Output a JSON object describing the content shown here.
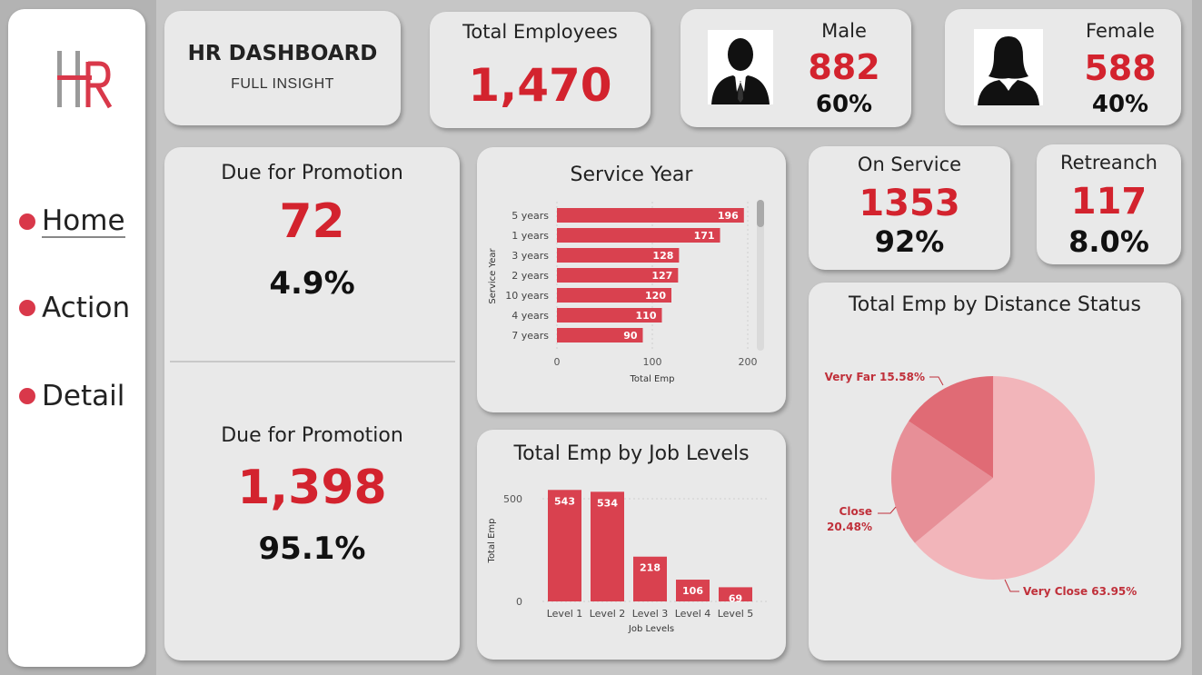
{
  "sidebar": {
    "logo_text": "HR",
    "items": [
      {
        "label": "Home",
        "active": true
      },
      {
        "label": "Action",
        "active": false
      },
      {
        "label": "Detail",
        "active": false
      }
    ]
  },
  "header": {
    "title": "HR DASHBOARD",
    "subtitle": "FULL INSIGHT"
  },
  "total_employees": {
    "label": "Total Employees",
    "value": "1,470"
  },
  "male": {
    "label": "Male",
    "value": "882",
    "percent": "60%",
    "icon": "male-avatar-icon"
  },
  "female": {
    "label": "Female",
    "value": "588",
    "percent": "40%",
    "icon": "female-avatar-icon"
  },
  "promotion_due": {
    "label": "Due for Promotion",
    "value": "72",
    "percent": "4.9%"
  },
  "promotion_not_due": {
    "label": "Due for Promotion",
    "value": "1,398",
    "percent": "95.1%"
  },
  "on_service": {
    "label": "On Service",
    "value": "1353",
    "percent": "92%"
  },
  "retrench": {
    "label": "Retreanch",
    "value": "117",
    "percent": "8.0%"
  },
  "colors": {
    "accent": "#d3232e",
    "bar": "#d9414f",
    "pie": [
      "#f2b5ba",
      "#e78f97",
      "#e06b75"
    ]
  },
  "chart_data": [
    {
      "type": "bar",
      "orientation": "horizontal",
      "title": "Service Year",
      "xlabel": "Total Emp",
      "ylabel": "Service Year",
      "categories": [
        "5 years",
        "1 years",
        "3 years",
        "2 years",
        "10 years",
        "4 years",
        "7 years"
      ],
      "values": [
        196,
        171,
        128,
        127,
        120,
        110,
        90
      ],
      "xlim": [
        0,
        200
      ],
      "xticks": [
        "0",
        "100",
        "200"
      ]
    },
    {
      "type": "bar",
      "title": "Total Emp by Job Levels",
      "xlabel": "Job Levels",
      "ylabel": "Total Emp",
      "categories": [
        "Level 1",
        "Level 2",
        "Level 3",
        "Level 4",
        "Level 5"
      ],
      "values": [
        543,
        534,
        218,
        106,
        69
      ],
      "yticks": [
        "0",
        "500"
      ],
      "ylim": [
        0,
        560
      ]
    },
    {
      "type": "pie",
      "title": "Total Emp by Distance Status",
      "slices": [
        {
          "label": "Very Close",
          "percent": 63.95,
          "display": "Very Close 63.95%"
        },
        {
          "label": "Close",
          "percent": 20.48,
          "display_line1": "Close",
          "display_line2": "20.48%"
        },
        {
          "label": "Very Far",
          "percent": 15.58,
          "display": "Very Far 15.58%"
        }
      ]
    }
  ]
}
